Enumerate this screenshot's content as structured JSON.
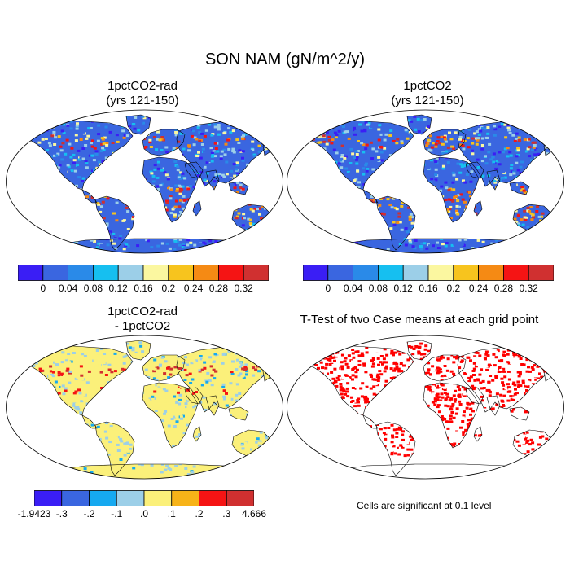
{
  "title": "SON NAM (gN/m^2/y)",
  "panels": [
    {
      "id": "p1",
      "title_lines": [
        "1pctCO2-rad",
        "(yrs 121-150)"
      ],
      "kind": "field",
      "palette": "main"
    },
    {
      "id": "p2",
      "title_lines": [
        "1pctCO2",
        "(yrs 121-150)"
      ],
      "kind": "field",
      "palette": "main"
    },
    {
      "id": "p3",
      "title_lines": [
        "1pctCO2-rad",
        "- 1pctCO2"
      ],
      "kind": "diff",
      "palette": "diff"
    },
    {
      "id": "p4",
      "title_lines": [
        "T-Test of two Case means at each grid point"
      ],
      "kind": "ttest",
      "palette": "sig"
    }
  ],
  "colorbars": {
    "main": {
      "colors": [
        "#3a1ef5",
        "#3a66e0",
        "#2a8ae8",
        "#16bff0",
        "#9ccfe8",
        "#fbf7a0",
        "#f7c41e",
        "#f58a14",
        "#f51414",
        "#d03030"
      ],
      "labels": [
        "0",
        "0.04",
        "0.08",
        "0.12",
        "0.16",
        "0.2",
        "0.24",
        "0.28",
        "0.32"
      ]
    },
    "diff": {
      "colors": [
        "#3a1ef5",
        "#3a66e0",
        "#16a9f0",
        "#9ccfe8",
        "#fbf07a",
        "#f7b318",
        "#f51414",
        "#d03030"
      ],
      "labels": [
        "-1.9423",
        "-.3",
        "-.2",
        "-.1",
        ".0",
        ".1",
        ".2",
        ".3",
        "4.666"
      ]
    },
    "sig": {
      "colors": [
        "#ff0000"
      ]
    }
  },
  "significance_note": "Cells are significant at 0.1 level"
}
